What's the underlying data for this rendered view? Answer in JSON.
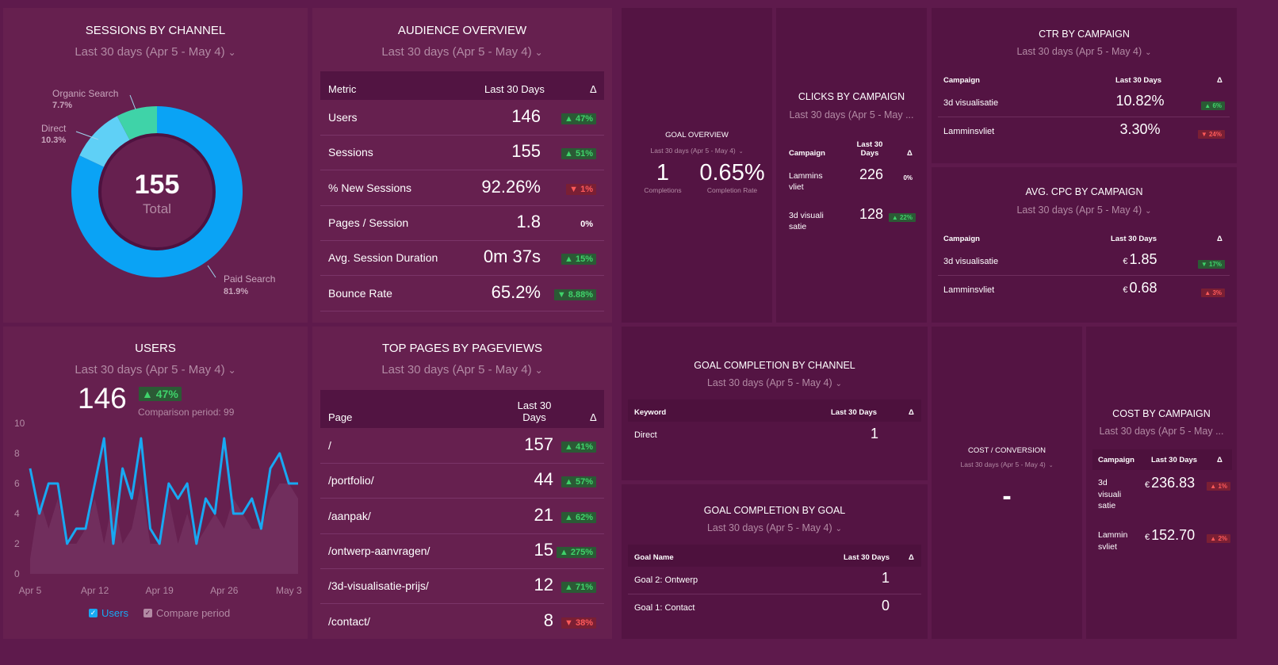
{
  "period_label": "Last 30 days (Apr 5 - May 4)",
  "period_label_short": "Last 30 days (Apr 5 - May ...",
  "sessions_by_channel": {
    "title": "SESSIONS BY CHANNEL",
    "total": "155",
    "total_label": "Total",
    "slices": [
      {
        "name": "Paid Search",
        "pct": "81.9%",
        "value": 81.9,
        "color": "#0aa3f5"
      },
      {
        "name": "Direct",
        "pct": "10.3%",
        "value": 10.3,
        "color": "#5fd0f6"
      },
      {
        "name": "Organic Search",
        "pct": "7.7%",
        "value": 7.7,
        "color": "#3fd3a8"
      }
    ]
  },
  "audience_overview": {
    "title": "AUDIENCE OVERVIEW",
    "headers": {
      "metric": "Metric",
      "last30": "Last 30 Days",
      "delta": "Δ"
    },
    "rows": [
      {
        "metric": "Users",
        "value": "146",
        "delta": "▲ 47%",
        "dir": "up"
      },
      {
        "metric": "Sessions",
        "value": "155",
        "delta": "▲ 51%",
        "dir": "up"
      },
      {
        "metric": "% New Sessions",
        "value": "92.26%",
        "delta": "▼ 1%",
        "dir": "down"
      },
      {
        "metric": "Pages / Session",
        "value": "1.8",
        "delta": "0%",
        "dir": "flat"
      },
      {
        "metric": "Avg. Session Duration",
        "value": "0m 37s",
        "delta": "▲ 15%",
        "dir": "up"
      },
      {
        "metric": "Bounce Rate",
        "value": "65.2%",
        "delta": "▼ 8.88%",
        "dir": "up"
      }
    ]
  },
  "goal_overview": {
    "title": "GOAL OVERVIEW",
    "completions": "1",
    "completions_label": "Completions",
    "rate": "0.65%",
    "rate_label": "Completion Rate"
  },
  "clicks_by_campaign": {
    "title": "CLICKS BY CAMPAIGN",
    "headers": {
      "campaign": "Campaign",
      "last30": "Last 30 Days",
      "delta": "Δ"
    },
    "rows": [
      {
        "campaign": "Lammins vliet",
        "value": "226",
        "delta": "0%",
        "dir": "flat"
      },
      {
        "campaign": "3d visuali satie",
        "value": "128",
        "delta": "▲ 22%",
        "dir": "up"
      }
    ]
  },
  "ctr_by_campaign": {
    "title": "CTR BY CAMPAIGN",
    "headers": {
      "campaign": "Campaign",
      "last30": "Last 30 Days",
      "delta": "Δ"
    },
    "rows": [
      {
        "campaign": "3d visualisatie",
        "value": "10.82%",
        "delta": "▲ 6%",
        "dir": "up"
      },
      {
        "campaign": "Lamminsvliet",
        "value": "3.30%",
        "delta": "▼ 24%",
        "dir": "down"
      }
    ]
  },
  "avg_cpc_by_campaign": {
    "title": "AVG. CPC BY CAMPAIGN",
    "headers": {
      "campaign": "Campaign",
      "last30": "Last 30 Days",
      "delta": "Δ"
    },
    "rows": [
      {
        "campaign": "3d visualisatie",
        "currency": "€",
        "value": "1.85",
        "delta": "▼ 17%",
        "dir": "up"
      },
      {
        "campaign": "Lamminsvliet",
        "currency": "€",
        "value": "0.68",
        "delta": "▲ 3%",
        "dir": "down"
      }
    ]
  },
  "users": {
    "title": "USERS",
    "value": "146",
    "delta": "▲ 47%",
    "comparison": "Comparison period: 99",
    "legend_users": "Users",
    "legend_compare": "Compare period"
  },
  "top_pages": {
    "title": "TOP PAGES BY PAGEVIEWS",
    "headers": {
      "page": "Page",
      "last30": "Last 30 Days",
      "delta": "Δ"
    },
    "rows": [
      {
        "page": "/",
        "value": "157",
        "delta": "▲ 41%",
        "dir": "up"
      },
      {
        "page": "/portfolio/",
        "value": "44",
        "delta": "▲ 57%",
        "dir": "up"
      },
      {
        "page": "/aanpak/",
        "value": "21",
        "delta": "▲ 62%",
        "dir": "up"
      },
      {
        "page": "/ontwerp-aanvragen/",
        "value": "15",
        "delta": "▲ 275%",
        "dir": "up"
      },
      {
        "page": "/3d-visualisatie-prijs/",
        "value": "12",
        "delta": "▲ 71%",
        "dir": "up"
      },
      {
        "page": "/contact/",
        "value": "8",
        "delta": "▼ 38%",
        "dir": "down"
      }
    ]
  },
  "goal_by_channel": {
    "title": "GOAL COMPLETION BY CHANNEL",
    "headers": {
      "keyword": "Keyword",
      "last30": "Last 30 Days",
      "delta": "Δ"
    },
    "rows": [
      {
        "keyword": "Direct",
        "value": "1"
      }
    ]
  },
  "goal_by_goal": {
    "title": "GOAL COMPLETION BY GOAL",
    "headers": {
      "goal": "Goal Name",
      "last30": "Last 30 Days",
      "delta": "Δ"
    },
    "rows": [
      {
        "goal": "Goal 2: Ontwerp",
        "value": "1"
      },
      {
        "goal": "Goal 1: Contact",
        "value": "0"
      }
    ]
  },
  "cost_conversion": {
    "title": "COST / CONVERSION",
    "value": "-"
  },
  "cost_by_campaign": {
    "title": "COST BY CAMPAIGN",
    "headers": {
      "campaign": "Campaign",
      "last30": "Last 30 Days",
      "delta": "Δ"
    },
    "rows": [
      {
        "campaign": "3d visuali satie",
        "currency": "€",
        "value": "236.83",
        "delta": "▲ 1%",
        "dir": "down"
      },
      {
        "campaign": "Lammin svliet",
        "currency": "€",
        "value": "152.70",
        "delta": "▲ 2%",
        "dir": "down"
      }
    ]
  },
  "chart_data": {
    "type": "line",
    "x": [
      "Apr 5",
      "Apr 6",
      "Apr 7",
      "Apr 8",
      "Apr 9",
      "Apr 10",
      "Apr 11",
      "Apr 12",
      "Apr 13",
      "Apr 14",
      "Apr 15",
      "Apr 16",
      "Apr 17",
      "Apr 18",
      "Apr 19",
      "Apr 20",
      "Apr 21",
      "Apr 22",
      "Apr 23",
      "Apr 24",
      "Apr 25",
      "Apr 26",
      "Apr 27",
      "Apr 28",
      "Apr 29",
      "Apr 30",
      "May 1",
      "May 2",
      "May 3",
      "May 4"
    ],
    "xticks": [
      "Apr 5",
      "Apr 12",
      "Apr 19",
      "Apr 26",
      "May 3"
    ],
    "yticks": [
      0,
      2,
      4,
      6,
      8,
      10
    ],
    "ylim": [
      0,
      10
    ],
    "series": [
      {
        "name": "Users",
        "color": "#18a8f2",
        "values": [
          7,
          4,
          6,
          6,
          2,
          3,
          3,
          6,
          9,
          2,
          7,
          5,
          9,
          3,
          2,
          6,
          5,
          6,
          2,
          5,
          4,
          9,
          4,
          4,
          5,
          3,
          7,
          8,
          6,
          6
        ]
      },
      {
        "name": "Compare period",
        "color": "#8a4a78",
        "values": [
          1,
          5,
          3,
          5,
          2,
          2,
          3,
          5,
          2,
          5,
          2,
          3,
          6,
          2,
          2,
          5,
          2,
          4,
          2,
          3,
          4,
          3,
          5,
          4,
          3,
          3,
          5,
          6,
          6,
          5
        ]
      }
    ]
  },
  "colors": {
    "background": "#5e1a4c",
    "card": "#541443",
    "accent": "#18a8f2",
    "up": "#3fd36a",
    "down": "#ff5a5a"
  }
}
